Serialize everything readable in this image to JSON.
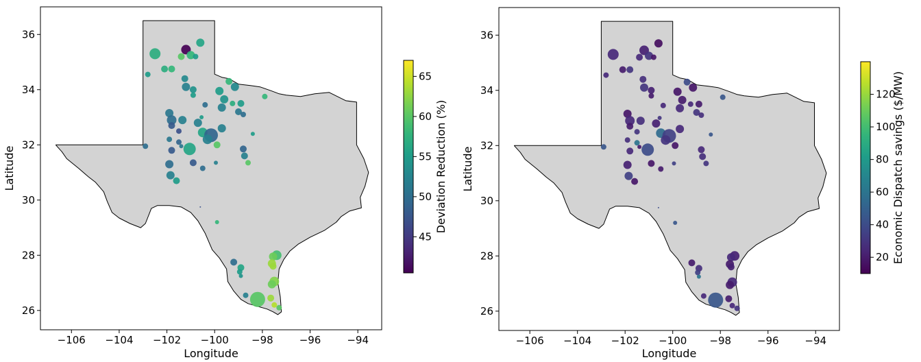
{
  "chart_data": [
    {
      "type": "scatter",
      "xlabel": "Longitude",
      "ylabel": "Latitude",
      "xlim": [
        -107.3,
        -93.0
      ],
      "ylim": [
        25.3,
        37.0
      ],
      "xticks": [
        "−106",
        "−104",
        "−102",
        "−100",
        "−98",
        "−96",
        "−94"
      ],
      "yticks": [
        "26",
        "28",
        "30",
        "32",
        "34",
        "36"
      ],
      "colorbar": {
        "label": "Deviation Reduction (%)",
        "min": 40.5,
        "max": 67,
        "ticks": [
          "45",
          "50",
          "55",
          "60",
          "65"
        ],
        "colormap": "viridis"
      },
      "points": [
        [
          -102.5,
          35.3,
          57,
          8
        ],
        [
          -101.2,
          35.45,
          40.5,
          7
        ],
        [
          -100.6,
          35.7,
          56,
          6
        ],
        [
          -101.4,
          35.2,
          60,
          5
        ],
        [
          -101.0,
          35.25,
          58,
          6
        ],
        [
          -100.8,
          35.2,
          55,
          4
        ],
        [
          -102.8,
          34.55,
          55,
          4
        ],
        [
          -102.1,
          34.75,
          57,
          5
        ],
        [
          -101.8,
          34.75,
          58,
          5
        ],
        [
          -101.25,
          34.4,
          53,
          5
        ],
        [
          -101.2,
          34.1,
          52,
          6
        ],
        [
          -100.9,
          34.0,
          54,
          5
        ],
        [
          -100.9,
          33.8,
          55,
          4
        ],
        [
          -100.4,
          33.45,
          50,
          4
        ],
        [
          -99.8,
          33.95,
          55,
          6
        ],
        [
          -99.6,
          33.65,
          54,
          6
        ],
        [
          -99.7,
          33.35,
          52,
          6
        ],
        [
          -99.4,
          34.3,
          58,
          5
        ],
        [
          -99.15,
          34.1,
          53,
          6
        ],
        [
          -99.25,
          33.5,
          57,
          4
        ],
        [
          -98.9,
          33.5,
          55,
          5
        ],
        [
          -99.0,
          33.2,
          51,
          5
        ],
        [
          -98.8,
          33.1,
          50,
          4
        ],
        [
          -97.9,
          33.75,
          58,
          4
        ],
        [
          -101.9,
          33.15,
          51,
          6
        ],
        [
          -101.8,
          32.9,
          50,
          7
        ],
        [
          -101.8,
          32.7,
          48,
          5
        ],
        [
          -101.35,
          32.9,
          52,
          6
        ],
        [
          -101.5,
          32.5,
          47,
          4
        ],
        [
          -100.7,
          32.8,
          52,
          6
        ],
        [
          -100.5,
          32.45,
          56,
          7
        ],
        [
          -100.15,
          32.35,
          49,
          10
        ],
        [
          -100.3,
          32.2,
          52,
          7
        ],
        [
          -99.7,
          32.6,
          52,
          6
        ],
        [
          -99.9,
          32.0,
          60,
          5
        ],
        [
          -100.55,
          33.0,
          55,
          3
        ],
        [
          -102.9,
          31.95,
          50,
          4
        ],
        [
          -101.9,
          32.2,
          51,
          4
        ],
        [
          -101.5,
          32.1,
          49,
          4
        ],
        [
          -101.8,
          31.8,
          48,
          5
        ],
        [
          -101.4,
          31.95,
          51,
          3
        ],
        [
          -101.05,
          31.85,
          56,
          9
        ],
        [
          -100.9,
          31.35,
          48,
          5
        ],
        [
          -100.5,
          31.15,
          50,
          4
        ],
        [
          -99.95,
          31.35,
          52,
          3
        ],
        [
          -101.9,
          31.3,
          50,
          6
        ],
        [
          -101.85,
          30.9,
          52,
          6
        ],
        [
          -101.6,
          30.7,
          55,
          5
        ],
        [
          -98.8,
          31.85,
          49,
          5
        ],
        [
          -98.75,
          31.6,
          52,
          5
        ],
        [
          -98.6,
          31.35,
          60,
          4
        ],
        [
          -98.4,
          32.4,
          55,
          3
        ],
        [
          -100.6,
          29.75,
          47,
          1
        ],
        [
          -99.9,
          29.2,
          58,
          3
        ],
        [
          -99.2,
          27.75,
          50,
          5
        ],
        [
          -98.9,
          27.55,
          56,
          5
        ],
        [
          -98.95,
          27.4,
          55,
          4
        ],
        [
          -98.9,
          27.25,
          54,
          3
        ],
        [
          -97.4,
          28.0,
          59,
          7
        ],
        [
          -97.55,
          27.95,
          61,
          6
        ],
        [
          -97.6,
          27.7,
          63,
          6
        ],
        [
          -97.55,
          27.6,
          63,
          5
        ],
        [
          -97.5,
          27.05,
          62,
          7
        ],
        [
          -97.6,
          26.95,
          61,
          6
        ],
        [
          -98.7,
          26.55,
          52,
          4
        ],
        [
          -98.2,
          26.4,
          60,
          11
        ],
        [
          -97.65,
          26.45,
          63,
          5
        ],
        [
          -97.5,
          26.2,
          64,
          4
        ],
        [
          -97.3,
          26.1,
          60,
          4
        ]
      ]
    },
    {
      "type": "scatter",
      "xlabel": "Longitude",
      "ylabel": "Latitude",
      "xlim": [
        -107.3,
        -93.0
      ],
      "ylim": [
        25.3,
        37.0
      ],
      "xticks": [
        "−106",
        "−104",
        "−102",
        "−100",
        "−98",
        "−96",
        "−94"
      ],
      "yticks": [
        "26",
        "28",
        "30",
        "32",
        "34",
        "36"
      ],
      "colorbar": {
        "label": "Economic Dispatch savings ($/MW)",
        "min": 10,
        "max": 140,
        "ticks": [
          "20",
          "40",
          "60",
          "80",
          "100",
          "120"
        ],
        "colormap": "viridis"
      },
      "points": [
        [
          -102.5,
          35.3,
          25,
          8
        ],
        [
          -101.2,
          35.45,
          22,
          7
        ],
        [
          -100.6,
          35.7,
          15,
          6
        ],
        [
          -101.4,
          35.2,
          25,
          5
        ],
        [
          -101.0,
          35.25,
          30,
          6
        ],
        [
          -100.8,
          35.2,
          18,
          4
        ],
        [
          -102.8,
          34.55,
          25,
          4
        ],
        [
          -102.1,
          34.75,
          20,
          5
        ],
        [
          -101.8,
          34.75,
          30,
          5
        ],
        [
          -101.25,
          34.4,
          28,
          5
        ],
        [
          -101.2,
          34.1,
          30,
          6
        ],
        [
          -100.9,
          34.0,
          22,
          5
        ],
        [
          -100.9,
          33.8,
          20,
          4
        ],
        [
          -100.4,
          33.45,
          25,
          4
        ],
        [
          -99.8,
          33.95,
          18,
          6
        ],
        [
          -99.6,
          33.65,
          20,
          6
        ],
        [
          -99.7,
          33.35,
          25,
          6
        ],
        [
          -99.4,
          34.3,
          40,
          5
        ],
        [
          -99.15,
          34.1,
          18,
          6
        ],
        [
          -99.25,
          33.5,
          25,
          4
        ],
        [
          -98.9,
          33.5,
          20,
          5
        ],
        [
          -99.0,
          33.2,
          30,
          5
        ],
        [
          -98.8,
          33.1,
          28,
          4
        ],
        [
          -97.9,
          33.75,
          45,
          4
        ],
        [
          -101.9,
          33.15,
          18,
          6
        ],
        [
          -101.8,
          32.9,
          25,
          7
        ],
        [
          -101.8,
          32.7,
          20,
          5
        ],
        [
          -101.35,
          32.9,
          28,
          6
        ],
        [
          -101.5,
          32.5,
          30,
          4
        ],
        [
          -100.7,
          32.8,
          22,
          6
        ],
        [
          -100.5,
          32.45,
          55,
          7
        ],
        [
          -100.15,
          32.35,
          35,
          10
        ],
        [
          -100.3,
          32.2,
          30,
          7
        ],
        [
          -99.7,
          32.6,
          25,
          6
        ],
        [
          -99.9,
          32.0,
          18,
          5
        ],
        [
          -100.55,
          33.0,
          30,
          3
        ],
        [
          -102.9,
          31.95,
          45,
          4
        ],
        [
          -101.9,
          32.2,
          28,
          4
        ],
        [
          -101.5,
          32.1,
          60,
          4
        ],
        [
          -101.8,
          31.8,
          25,
          5
        ],
        [
          -101.4,
          31.95,
          20,
          3
        ],
        [
          -101.05,
          31.85,
          40,
          9
        ],
        [
          -100.9,
          31.35,
          18,
          5
        ],
        [
          -100.5,
          31.15,
          20,
          4
        ],
        [
          -99.95,
          31.35,
          35,
          3
        ],
        [
          -101.9,
          31.3,
          22,
          6
        ],
        [
          -101.85,
          30.9,
          35,
          6
        ],
        [
          -101.6,
          30.7,
          18,
          5
        ],
        [
          -98.8,
          31.85,
          25,
          5
        ],
        [
          -98.75,
          31.6,
          28,
          5
        ],
        [
          -98.6,
          31.35,
          30,
          4
        ],
        [
          -98.4,
          32.4,
          45,
          3
        ],
        [
          -100.6,
          29.75,
          40,
          1
        ],
        [
          -99.9,
          29.2,
          45,
          3
        ],
        [
          -99.2,
          27.75,
          20,
          5
        ],
        [
          -98.9,
          27.55,
          28,
          5
        ],
        [
          -98.95,
          27.4,
          35,
          4
        ],
        [
          -98.9,
          27.25,
          60,
          3
        ],
        [
          -97.4,
          28.0,
          22,
          7
        ],
        [
          -97.55,
          27.95,
          25,
          6
        ],
        [
          -97.6,
          27.7,
          20,
          6
        ],
        [
          -97.55,
          27.6,
          22,
          5
        ],
        [
          -97.5,
          27.05,
          25,
          7
        ],
        [
          -97.6,
          26.95,
          20,
          6
        ],
        [
          -98.7,
          26.55,
          25,
          4
        ],
        [
          -98.2,
          26.4,
          45,
          11
        ],
        [
          -97.65,
          26.45,
          20,
          5
        ],
        [
          -97.5,
          26.2,
          25,
          4
        ],
        [
          -97.3,
          26.1,
          30,
          4
        ]
      ]
    }
  ]
}
